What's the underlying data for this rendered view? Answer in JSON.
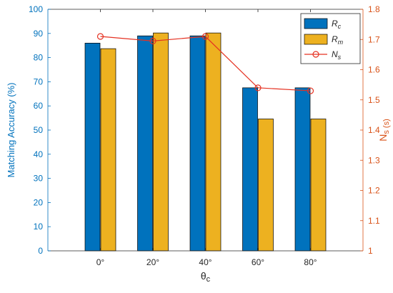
{
  "chart_data": {
    "type": "bar",
    "categories": [
      "0°",
      "20°",
      "40°",
      "60°",
      "80°"
    ],
    "xlabel": "θc",
    "ylabel_left": "Matching Accuracy  (%)",
    "ylabel_right": "Ns (s)",
    "ylim_left": [
      0,
      100
    ],
    "ylim_right": [
      1,
      1.8
    ],
    "left_ticks": [
      0,
      10,
      20,
      30,
      40,
      50,
      60,
      70,
      80,
      90,
      100
    ],
    "right_ticks": [
      1,
      1.1,
      1.2,
      1.3,
      1.4,
      1.5,
      1.6,
      1.7,
      1.8
    ],
    "grid": false,
    "legend_position": "top-right",
    "series": [
      {
        "name": "Rc",
        "kind": "bar",
        "axis": "left",
        "color": "#0072BD",
        "values": [
          86,
          89,
          89,
          67.5,
          67.5
        ]
      },
      {
        "name": "Rm",
        "kind": "bar",
        "axis": "left",
        "color": "#EDB120",
        "values": [
          83.7,
          90.2,
          90.2,
          54.6,
          54.6
        ]
      },
      {
        "name": "Ns",
        "kind": "line",
        "axis": "right",
        "color": "#E53222",
        "marker": "circle",
        "values": [
          1.71,
          1.695,
          1.71,
          1.54,
          1.53
        ]
      }
    ],
    "legend": [
      {
        "main": "R",
        "sub": "c"
      },
      {
        "main": "R",
        "sub": "m"
      },
      {
        "main": "N",
        "sub": "s"
      }
    ],
    "colors": {
      "left_axis": "#0072BD",
      "right_axis": "#D95319",
      "plot_frame": "#262626"
    }
  }
}
